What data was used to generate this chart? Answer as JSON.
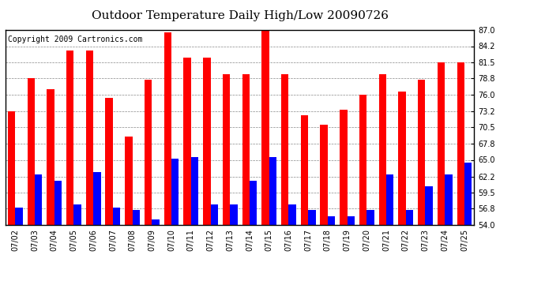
{
  "title": "Outdoor Temperature Daily High/Low 20090726",
  "copyright": "Copyright 2009 Cartronics.com",
  "dates": [
    "07/02",
    "07/03",
    "07/04",
    "07/05",
    "07/06",
    "07/07",
    "07/08",
    "07/09",
    "07/10",
    "07/11",
    "07/12",
    "07/13",
    "07/14",
    "07/15",
    "07/16",
    "07/17",
    "07/18",
    "07/19",
    "07/20",
    "07/21",
    "07/22",
    "07/23",
    "07/24",
    "07/25"
  ],
  "highs": [
    73.2,
    78.8,
    77.0,
    83.5,
    83.5,
    75.5,
    69.0,
    78.5,
    86.5,
    82.2,
    82.2,
    79.5,
    79.5,
    87.5,
    79.5,
    72.5,
    71.0,
    73.5,
    76.0,
    79.5,
    76.5,
    78.5,
    81.5,
    81.5
  ],
  "lows": [
    57.0,
    62.5,
    61.5,
    57.5,
    63.0,
    57.0,
    56.5,
    55.0,
    65.2,
    65.5,
    57.5,
    57.5,
    61.5,
    65.5,
    57.5,
    56.5,
    55.5,
    55.5,
    56.5,
    62.5,
    56.5,
    60.5,
    62.5,
    64.5
  ],
  "high_color": "#ff0000",
  "low_color": "#0000ff",
  "background_color": "#ffffff",
  "grid_color": "#888888",
  "ylim": [
    54.0,
    87.0
  ],
  "yticks": [
    54.0,
    56.8,
    59.5,
    62.2,
    65.0,
    67.8,
    70.5,
    73.2,
    76.0,
    78.8,
    81.5,
    84.2,
    87.0
  ],
  "title_fontsize": 11,
  "copyright_fontsize": 7,
  "tick_fontsize": 7,
  "bar_width": 0.38
}
